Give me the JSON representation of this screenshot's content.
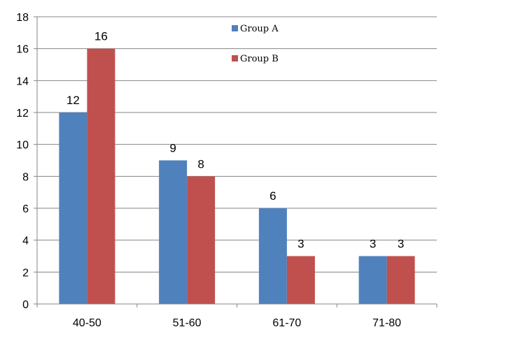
{
  "chart_data": {
    "type": "bar",
    "categories": [
      "40-50",
      "51-60",
      "61-70",
      "71-80"
    ],
    "series": [
      {
        "name": "Group A",
        "values": [
          12,
          9,
          6,
          3
        ],
        "color": "#4F81BD"
      },
      {
        "name": "Group B",
        "values": [
          16,
          8,
          3,
          3
        ],
        "color": "#C0504D"
      }
    ],
    "title": "",
    "xlabel": "",
    "ylabel": "",
    "ylim": [
      0,
      18
    ],
    "yticks": [
      0,
      2,
      4,
      6,
      8,
      10,
      12,
      14,
      16,
      18
    ],
    "grid": true,
    "legend_position": "top-center",
    "data_labels": true
  }
}
